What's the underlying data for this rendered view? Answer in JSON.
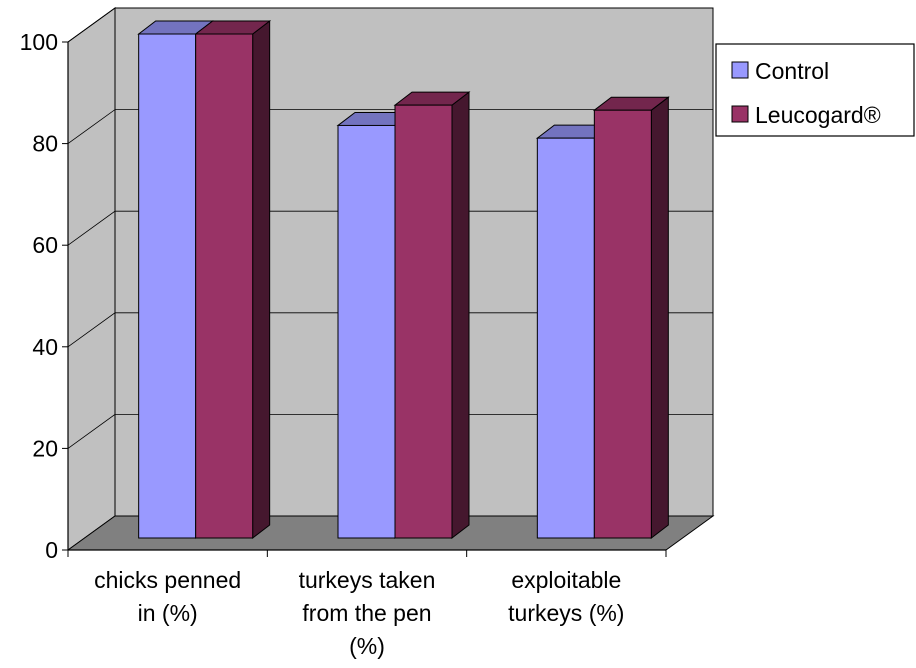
{
  "chart_data": {
    "type": "bar",
    "style": "3d-clustered-column",
    "categories": [
      [
        "chicks penned",
        "in (%)"
      ],
      [
        "turkeys taken",
        "from the pen",
        "(%)"
      ],
      [
        "exploitable",
        "turkeys (%)"
      ]
    ],
    "series": [
      {
        "name": "Control",
        "values": [
          100,
          82,
          79.5
        ],
        "color": "#9999ff"
      },
      {
        "name": "Leucogard®",
        "values": [
          100,
          86,
          85
        ],
        "color": "#993366"
      }
    ],
    "y_ticks": [
      "0",
      "20",
      "40",
      "60",
      "80",
      "100"
    ],
    "ylim": [
      0,
      100
    ],
    "title": "",
    "xlabel": "",
    "ylabel": "",
    "grid": true,
    "legend_position": "right",
    "wall_color": "#c0c0c0",
    "floor_color": "#808080"
  }
}
